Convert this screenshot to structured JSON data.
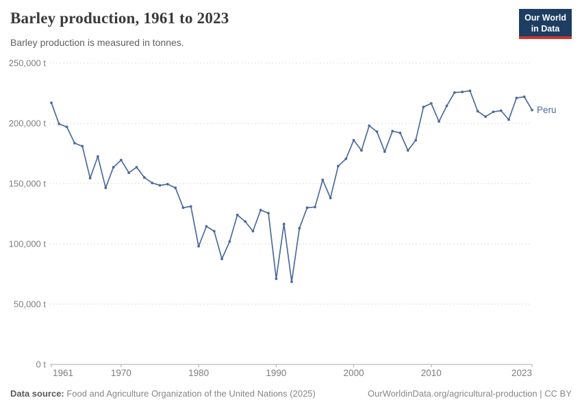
{
  "header": {
    "title": "Barley production, 1961 to 2023",
    "subtitle": "Barley production is measured in tonnes.",
    "logo_line1": "Our World",
    "logo_line2": "in Data",
    "logo_bg": "#1d3d63",
    "logo_accent": "#d0342c"
  },
  "chart_data": {
    "type": "line",
    "title": "Barley production, 1961 to 2023",
    "subtitle": "Barley production is measured in tonnes.",
    "unit": "t",
    "xlabel": "",
    "ylabel": "",
    "ylim": [
      0,
      250000
    ],
    "xlim": [
      1961,
      2023
    ],
    "grid": "horizontal-dashed",
    "legend_position": "end-of-line",
    "line_color": "#4C6A9C",
    "grid_color": "#dddddd",
    "axis_color": "#a8a8a8",
    "tick_label_color": "#7d7d7d",
    "x": [
      1961,
      1962,
      1963,
      1964,
      1965,
      1966,
      1967,
      1968,
      1969,
      1970,
      1971,
      1972,
      1973,
      1974,
      1975,
      1976,
      1977,
      1978,
      1979,
      1980,
      1981,
      1982,
      1983,
      1984,
      1985,
      1986,
      1987,
      1988,
      1989,
      1990,
      1991,
      1992,
      1993,
      1994,
      1995,
      1996,
      1997,
      1998,
      1999,
      2000,
      2001,
      2002,
      2003,
      2004,
      2005,
      2006,
      2007,
      2008,
      2009,
      2010,
      2011,
      2012,
      2013,
      2014,
      2015,
      2016,
      2017,
      2018,
      2019,
      2020,
      2021,
      2022,
      2023
    ],
    "series": [
      {
        "name": "Peru",
        "color": "#4C6A9C",
        "values": [
          217000,
          199500,
          197000,
          183500,
          181000,
          154500,
          172500,
          146500,
          163500,
          169500,
          159000,
          163500,
          155000,
          150500,
          148500,
          149500,
          146500,
          130000,
          131000,
          98000,
          114500,
          110500,
          87500,
          102000,
          124000,
          118500,
          110500,
          128000,
          125500,
          71000,
          116500,
          68500,
          113000,
          130000,
          130500,
          153000,
          138000,
          164500,
          170500,
          186000,
          177500,
          198000,
          193000,
          176500,
          193500,
          192000,
          177500,
          186000,
          213500,
          216500,
          201500,
          214500,
          225500,
          226000,
          227000,
          210000,
          205500,
          209500,
          210500,
          203000,
          221000,
          222000,
          211000
        ]
      }
    ],
    "yticks": [
      {
        "value": 0,
        "label": "0 t"
      },
      {
        "value": 50000,
        "label": "50,000 t"
      },
      {
        "value": 100000,
        "label": "100,000 t"
      },
      {
        "value": 150000,
        "label": "150,000 t"
      },
      {
        "value": 200000,
        "label": "200,000 t"
      },
      {
        "value": 250000,
        "label": "250,000 t"
      }
    ],
    "xticks": [
      {
        "value": 1961,
        "label": "1961"
      },
      {
        "value": 1970,
        "label": "1970"
      },
      {
        "value": 1980,
        "label": "1980"
      },
      {
        "value": 1990,
        "label": "1990"
      },
      {
        "value": 2000,
        "label": "2000"
      },
      {
        "value": 2010,
        "label": "2010"
      },
      {
        "value": 2023,
        "label": "2023"
      }
    ],
    "end_label": "Peru"
  },
  "footer": {
    "source_label": "Data source:",
    "source_text": " Food and Agriculture Organization of the United Nations (2025)",
    "url": "OurWorldinData.org/agricultural-production",
    "license": " | CC BY"
  }
}
